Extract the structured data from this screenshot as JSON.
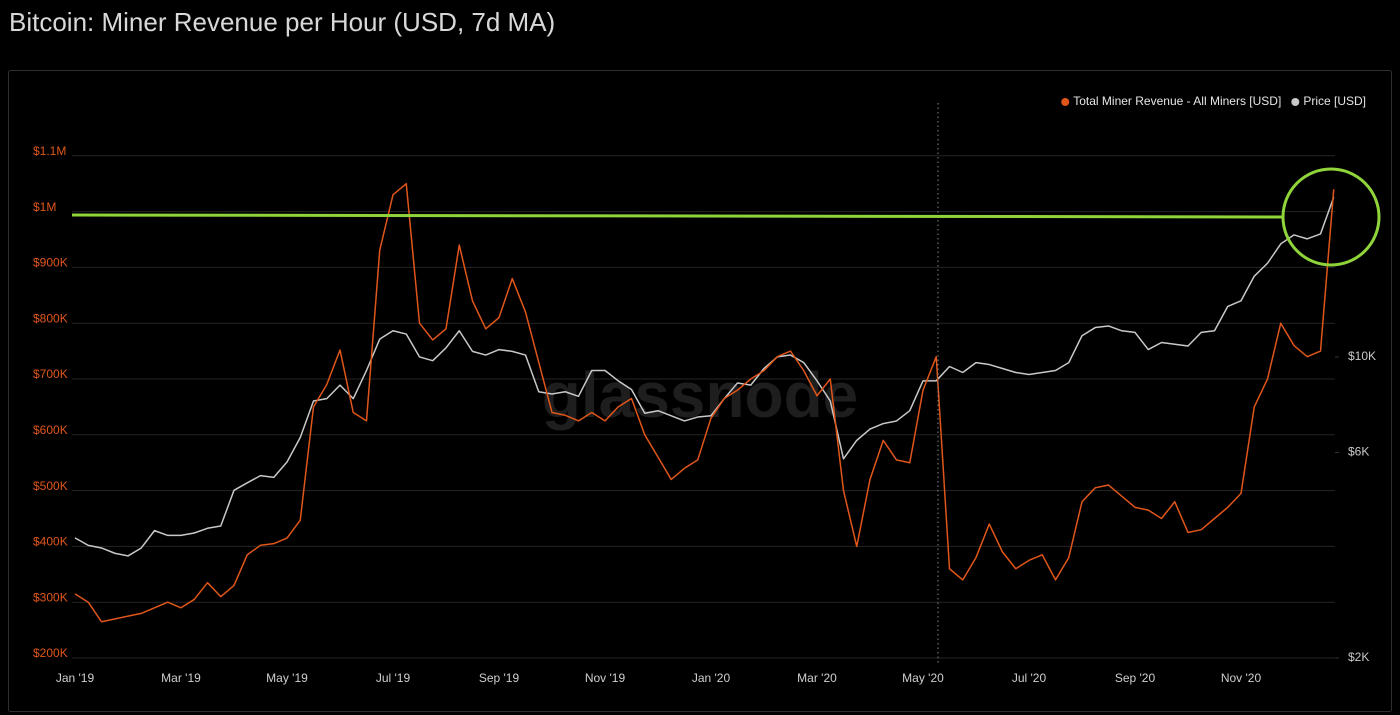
{
  "chart_data": {
    "type": "line",
    "title": "Bitcoin: Miner Revenue per Hour (USD, 7d MA)",
    "watermark": "glassnode",
    "categories": [
      "Jan '19",
      null,
      null,
      null,
      null,
      null,
      null,
      null,
      "Mar '19",
      null,
      null,
      null,
      null,
      null,
      null,
      null,
      "May '19",
      null,
      null,
      null,
      null,
      null,
      null,
      null,
      "Jul '19",
      null,
      null,
      null,
      null,
      null,
      null,
      null,
      "Sep '19",
      null,
      null,
      null,
      null,
      null,
      null,
      null,
      "Nov '19",
      null,
      null,
      null,
      null,
      null,
      null,
      null,
      "Jan '20",
      null,
      null,
      null,
      null,
      null,
      null,
      null,
      "Mar '20",
      null,
      null,
      null,
      null,
      null,
      null,
      null,
      "May '20",
      null,
      null,
      null,
      null,
      null,
      null,
      null,
      "Jul '20",
      null,
      null,
      null,
      null,
      null,
      null,
      null,
      "Sep '20",
      null,
      null,
      null,
      null,
      null,
      null,
      null,
      "Nov '20",
      null,
      null,
      null,
      null,
      null,
      null,
      null
    ],
    "series": [
      {
        "name": "Total Miner Revenue - All Miners [USD]",
        "color": "#e0561a",
        "axis": "y",
        "values": [
          315000,
          300000,
          265000,
          270000,
          275000,
          280000,
          290000,
          300000,
          290000,
          305000,
          335000,
          310000,
          330000,
          385000,
          402000,
          405000,
          415000,
          447000,
          650000,
          690000,
          752000,
          640000,
          625000,
          931000,
          1030000,
          1050000,
          800000,
          770000,
          790000,
          940000,
          840000,
          790000,
          810000,
          880000,
          820000,
          730000,
          640000,
          635000,
          625000,
          640000,
          625000,
          650000,
          665000,
          600000,
          560000,
          520000,
          540000,
          555000,
          630000,
          665000,
          680000,
          700000,
          715000,
          740000,
          750000,
          715000,
          670000,
          700000,
          500000,
          400000,
          520000,
          590000,
          555000,
          550000,
          680000,
          740000,
          360000,
          340000,
          380000,
          440000,
          390000,
          360000,
          375000,
          385000,
          340000,
          380000,
          480000,
          505000,
          510000,
          490000,
          470000,
          465000,
          450000,
          480000,
          425000,
          430000,
          450000,
          470000,
          495000,
          650000,
          700000,
          800000,
          760000,
          740000,
          750000,
          1040000
        ]
      },
      {
        "name": "Price [USD]",
        "color": "#c8c8c8",
        "axis": "y2",
        "values": [
          3800,
          3650,
          3600,
          3500,
          3450,
          3600,
          3950,
          3850,
          3850,
          3900,
          4000,
          4050,
          4900,
          5100,
          5300,
          5250,
          5700,
          6500,
          7900,
          8000,
          8600,
          8000,
          9300,
          11000,
          11500,
          11300,
          10000,
          9800,
          10500,
          11500,
          10300,
          10100,
          10400,
          10300,
          10100,
          8300,
          8200,
          8300,
          8100,
          9300,
          9300,
          8800,
          8400,
          7400,
          7500,
          7300,
          7100,
          7250,
          7300,
          8000,
          8700,
          8600,
          9400,
          10000,
          10100,
          9700,
          8800,
          7900,
          5800,
          6400,
          6800,
          7000,
          7100,
          7500,
          8800,
          8800,
          9500,
          9200,
          9700,
          9600,
          9400,
          9200,
          9100,
          9200,
          9300,
          9700,
          11200,
          11700,
          11800,
          11500,
          11400,
          10400,
          10800,
          10700,
          10600,
          11400,
          11500,
          13100,
          13500,
          15400,
          16500,
          18300,
          19200,
          18800,
          19300,
          23500
        ]
      }
    ],
    "ylim": [
      190000,
      1200000
    ],
    "yticks": [
      {
        "value": 200000,
        "label": "$200K"
      },
      {
        "value": 300000,
        "label": "$300K"
      },
      {
        "value": 400000,
        "label": "$400K"
      },
      {
        "value": 500000,
        "label": "$500K"
      },
      {
        "value": 600000,
        "label": "$600K"
      },
      {
        "value": 700000,
        "label": "$700K"
      },
      {
        "value": 800000,
        "label": "$800K"
      },
      {
        "value": 900000,
        "label": "$900K"
      },
      {
        "value": 1000000,
        "label": "$1M"
      },
      {
        "value": 1100000,
        "label": "$1.1M"
      }
    ],
    "y2lim": [
      1940,
      39500
    ],
    "y2ticks": [
      {
        "value": 2000,
        "label": "$2K"
      },
      {
        "value": 6000,
        "label": "$6K"
      },
      {
        "value": 10000,
        "label": "$10K"
      }
    ],
    "y2log": true,
    "grid": true,
    "legend": "top-right"
  }
}
